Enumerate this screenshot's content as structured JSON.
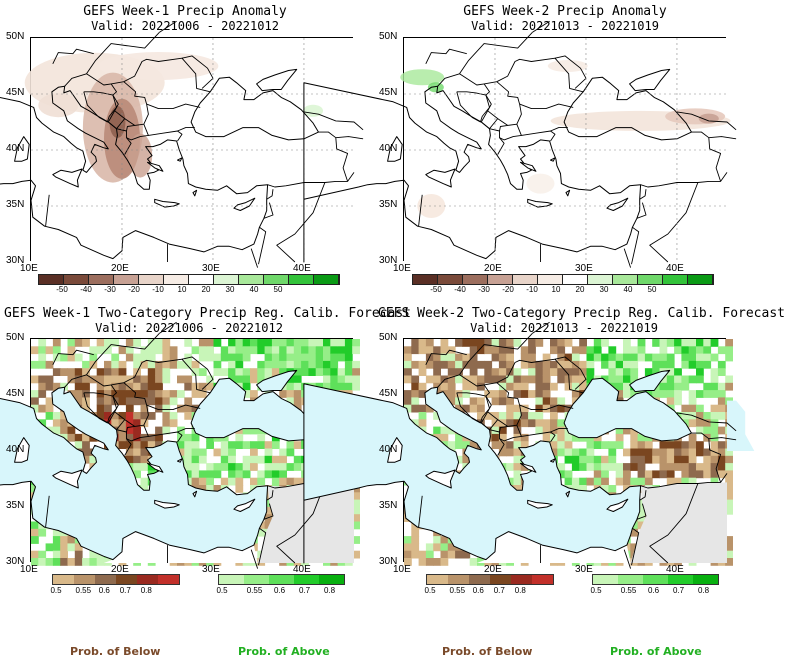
{
  "panels": [
    {
      "title": "GEFS Week-1 Precip Anomaly",
      "valid": "Valid: 20221006 - 20221012"
    },
    {
      "title": "GEFS Week-2 Precip Anomaly",
      "valid": "Valid: 20221013 - 20221019"
    },
    {
      "title": "GEFS Week-1 Two-Category Precip Reg. Calib. Forecast",
      "valid": "Valid: 20221006 - 20221012"
    },
    {
      "title": "GEFS Week-2 Two-Category Precip Reg. Calib. Forecast",
      "valid": "Valid: 20221013 - 20221019"
    }
  ],
  "lat_labels": [
    "50N",
    "45N",
    "40N",
    "35N",
    "30N"
  ],
  "lon_labels": [
    "10E",
    "20E",
    "30E",
    "40E"
  ],
  "anomaly_colorbar": {
    "ticks": [
      "-50",
      "-40",
      "-30",
      "-20",
      "-10",
      "10",
      "20",
      "30",
      "40",
      "50"
    ],
    "colors": [
      "#5a2f25",
      "#7a4a3a",
      "#9c6e5e",
      "#c7a194",
      "#e8d4c9",
      "#f6ece5",
      "#ffffff",
      "#dcf5d4",
      "#a8e89a",
      "#6fd86a",
      "#33c33a",
      "#0a9a15"
    ]
  },
  "prob_colorbar": {
    "below_ticks": [
      "0.5",
      "0.55",
      "0.6",
      "0.7",
      "0.8"
    ],
    "above_ticks": [
      "0.5",
      "0.55",
      "0.6",
      "0.7",
      "0.8"
    ],
    "below_colors": [
      "#d9b98a",
      "#b9936a",
      "#8e6a4e",
      "#7a4620",
      "#9a2a20",
      "#c2302a"
    ],
    "above_colors": [
      "#c8f5b8",
      "#96ee88",
      "#5ee05a",
      "#22cc2a",
      "#08b010"
    ]
  },
  "legend": {
    "below": "Prob. of Below",
    "above": "Prob. of Above",
    "below_color": "#7a4a2a",
    "above_color": "#22b022"
  },
  "colors": {
    "sea": "#d8f6fb",
    "land": "#ffffff",
    "nodata": "#e6e6e6"
  }
}
